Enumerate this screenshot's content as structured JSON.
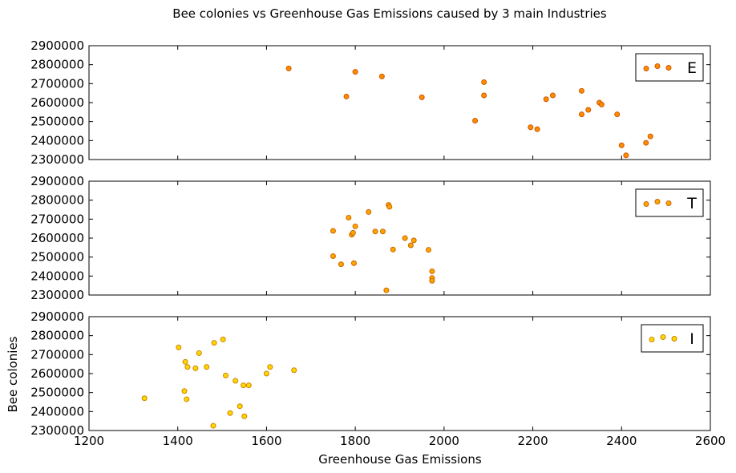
{
  "chart_data": [
    {
      "type": "scatter",
      "title": "Bee colonies vs Greenhouse Gas Emissions caused by 3 main Industries",
      "xlabel": "Greenhouse Gas Emissions",
      "ylabel": "Bee colonies",
      "xlim": [
        1200,
        2600
      ],
      "ylim": [
        2300000,
        2900000
      ],
      "x_ticks": [
        "1200",
        "1400",
        "1600",
        "1800",
        "2000",
        "2200",
        "2400",
        "2600"
      ],
      "y_ticks": [
        "2300000",
        "2400000",
        "2500000",
        "2600000",
        "2700000",
        "2800000",
        "2900000"
      ],
      "sharex": true,
      "grid": false,
      "legend_position": "top-right",
      "panels": [
        {
          "legend": "E",
          "color": "#ff8c00",
          "points": [
            {
              "x": 1650,
              "y": 2780000
            },
            {
              "x": 1780,
              "y": 2632000
            },
            {
              "x": 1800,
              "y": 2762000
            },
            {
              "x": 1860,
              "y": 2738000
            },
            {
              "x": 1950,
              "y": 2628000
            },
            {
              "x": 2070,
              "y": 2505000
            },
            {
              "x": 2090,
              "y": 2638000
            },
            {
              "x": 2090,
              "y": 2708000
            },
            {
              "x": 2195,
              "y": 2470000
            },
            {
              "x": 2210,
              "y": 2460000
            },
            {
              "x": 2230,
              "y": 2618000
            },
            {
              "x": 2245,
              "y": 2638000
            },
            {
              "x": 2310,
              "y": 2662000
            },
            {
              "x": 2310,
              "y": 2538000
            },
            {
              "x": 2325,
              "y": 2562000
            },
            {
              "x": 2350,
              "y": 2600000
            },
            {
              "x": 2355,
              "y": 2590000
            },
            {
              "x": 2390,
              "y": 2538000
            },
            {
              "x": 2400,
              "y": 2375000
            },
            {
              "x": 2410,
              "y": 2322000
            },
            {
              "x": 2455,
              "y": 2388000
            },
            {
              "x": 2465,
              "y": 2422000
            }
          ]
        },
        {
          "legend": "T",
          "color": "#ffa500",
          "points": [
            {
              "x": 1750,
              "y": 2638000
            },
            {
              "x": 1750,
              "y": 2505000
            },
            {
              "x": 1768,
              "y": 2462000
            },
            {
              "x": 1785,
              "y": 2708000
            },
            {
              "x": 1792,
              "y": 2618000
            },
            {
              "x": 1795,
              "y": 2628000
            },
            {
              "x": 1797,
              "y": 2468000
            },
            {
              "x": 1800,
              "y": 2662000
            },
            {
              "x": 1830,
              "y": 2738000
            },
            {
              "x": 1845,
              "y": 2635000
            },
            {
              "x": 1862,
              "y": 2635000
            },
            {
              "x": 1870,
              "y": 2325000
            },
            {
              "x": 1875,
              "y": 2775000
            },
            {
              "x": 1877,
              "y": 2765000
            },
            {
              "x": 1885,
              "y": 2540000
            },
            {
              "x": 1912,
              "y": 2600000
            },
            {
              "x": 1925,
              "y": 2562000
            },
            {
              "x": 1932,
              "y": 2588000
            },
            {
              "x": 1965,
              "y": 2538000
            },
            {
              "x": 1973,
              "y": 2425000
            },
            {
              "x": 1973,
              "y": 2390000
            },
            {
              "x": 1973,
              "y": 2375000
            }
          ]
        },
        {
          "legend": "I",
          "color": "#ffd700",
          "points": [
            {
              "x": 1325,
              "y": 2470000
            },
            {
              "x": 1402,
              "y": 2738000
            },
            {
              "x": 1415,
              "y": 2508000
            },
            {
              "x": 1417,
              "y": 2662000
            },
            {
              "x": 1420,
              "y": 2465000
            },
            {
              "x": 1422,
              "y": 2635000
            },
            {
              "x": 1440,
              "y": 2628000
            },
            {
              "x": 1448,
              "y": 2708000
            },
            {
              "x": 1465,
              "y": 2635000
            },
            {
              "x": 1480,
              "y": 2325000
            },
            {
              "x": 1482,
              "y": 2762000
            },
            {
              "x": 1502,
              "y": 2780000
            },
            {
              "x": 1508,
              "y": 2590000
            },
            {
              "x": 1518,
              "y": 2392000
            },
            {
              "x": 1530,
              "y": 2562000
            },
            {
              "x": 1540,
              "y": 2428000
            },
            {
              "x": 1548,
              "y": 2538000
            },
            {
              "x": 1550,
              "y": 2375000
            },
            {
              "x": 1560,
              "y": 2538000
            },
            {
              "x": 1600,
              "y": 2600000
            },
            {
              "x": 1608,
              "y": 2635000
            },
            {
              "x": 1662,
              "y": 2618000
            }
          ]
        }
      ]
    }
  ]
}
